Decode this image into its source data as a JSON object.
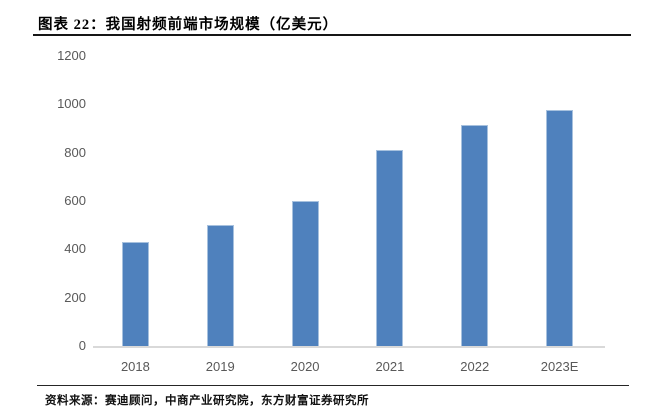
{
  "header": {
    "title": "图表 22：我国射频前端市场规模（亿美元）"
  },
  "chart_data": {
    "type": "bar",
    "title": "我国射频前端市场规模（亿美元）",
    "categories": [
      "2018",
      "2019",
      "2020",
      "2021",
      "2022",
      "2023E"
    ],
    "values": [
      430,
      500,
      600,
      810,
      915,
      975
    ],
    "xlabel": "",
    "ylabel": "",
    "ylim": [
      0,
      1200
    ],
    "yticks": [
      0,
      200,
      400,
      600,
      800,
      1000,
      1200
    ],
    "grid": false,
    "legend": false,
    "bar_color": "#4F81BD",
    "bar_highlight_color": "#A7C1DE",
    "axis_line_color": "#D9D9D9",
    "tick_label_color": "#595959"
  },
  "footer": {
    "source": "资料来源：赛迪顾问，中商产业研究院，东方财富证券研究所"
  }
}
